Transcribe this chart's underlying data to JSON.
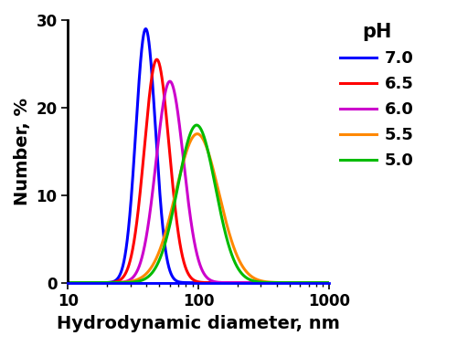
{
  "title": "pH",
  "xlabel": "Hydrodynamic diameter, nm",
  "ylabel": "Number, %",
  "xlim": [
    10,
    1000
  ],
  "ylim": [
    0,
    30
  ],
  "yticks": [
    0,
    10,
    20,
    30
  ],
  "curves": [
    {
      "label": "7.0",
      "color": "#0000ff",
      "mu_log10": 1.595,
      "sigma_log10": 0.075,
      "peak": 29.0
    },
    {
      "label": "6.5",
      "color": "#ff0000",
      "mu_log10": 1.68,
      "sigma_log10": 0.095,
      "peak": 25.5
    },
    {
      "label": "6.0",
      "color": "#cc00cc",
      "mu_log10": 1.78,
      "sigma_log10": 0.105,
      "peak": 23.0
    },
    {
      "label": "5.5",
      "color": "#ff8800",
      "mu_log10": 1.99,
      "sigma_log10": 0.165,
      "peak": 17.0
    },
    {
      "label": "5.0",
      "color": "#00bb00",
      "mu_log10": 1.985,
      "sigma_log10": 0.145,
      "peak": 18.0
    }
  ],
  "legend_title_fontsize": 15,
  "legend_fontsize": 13,
  "axis_label_fontsize": 14,
  "tick_fontsize": 12,
  "line_width": 2.2,
  "background_color": "#ffffff",
  "spine_color": "#0000ff",
  "spine_linewidth": 2.0
}
